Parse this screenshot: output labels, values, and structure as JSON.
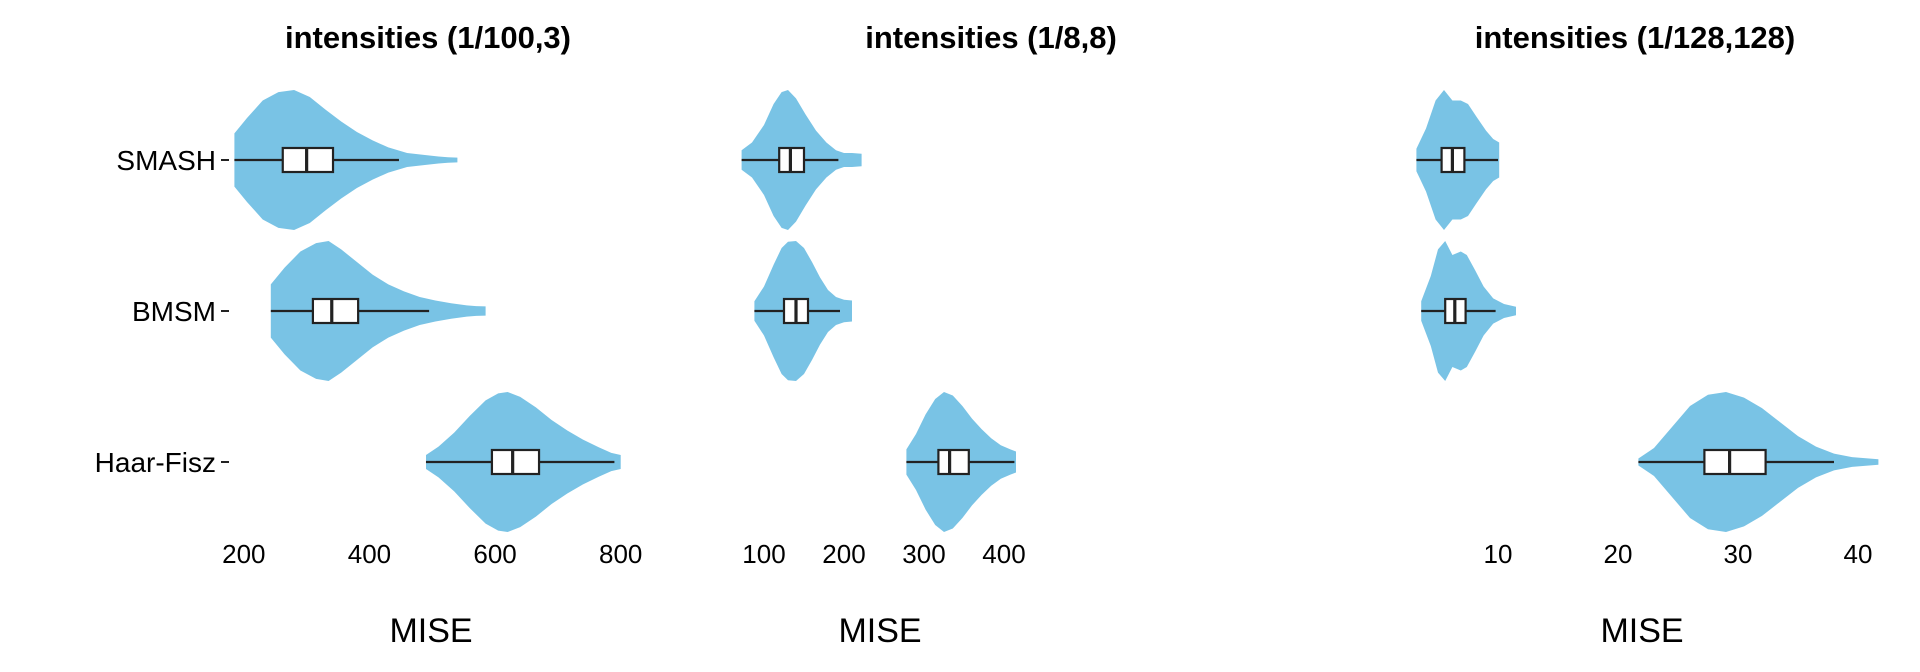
{
  "chart_data": [
    {
      "type": "violin",
      "title": "intensities (1/100,3)",
      "xlabel": "MISE",
      "ylabel": "",
      "xlim": [
        178,
        818
      ],
      "xticks": [
        200,
        400,
        600,
        800
      ],
      "categories": [
        "SMASH",
        "BMSM",
        "Haar-Fisz"
      ],
      "fill_color": "#79C3E5",
      "series": [
        {
          "category": "SMASH",
          "min": 185,
          "q1": 262,
          "median": 300,
          "q3": 342,
          "whisker_high": 447,
          "max": 540,
          "density": [
            [
              185,
              0.38
            ],
            [
              205,
              0.6
            ],
            [
              230,
              0.85
            ],
            [
              255,
              0.97
            ],
            [
              280,
              1.0
            ],
            [
              305,
              0.9
            ],
            [
              330,
              0.72
            ],
            [
              355,
              0.55
            ],
            [
              380,
              0.4
            ],
            [
              405,
              0.28
            ],
            [
              430,
              0.18
            ],
            [
              460,
              0.1
            ],
            [
              490,
              0.07
            ],
            [
              510,
              0.05
            ],
            [
              525,
              0.04
            ],
            [
              540,
              0.035
            ]
          ]
        },
        {
          "category": "BMSM",
          "min": 243,
          "q1": 310,
          "median": 340,
          "q3": 382,
          "whisker_high": 495,
          "max": 585,
          "density": [
            [
              243,
              0.38
            ],
            [
              265,
              0.62
            ],
            [
              290,
              0.85
            ],
            [
              315,
              0.97
            ],
            [
              335,
              1.0
            ],
            [
              355,
              0.88
            ],
            [
              380,
              0.7
            ],
            [
              405,
              0.52
            ],
            [
              430,
              0.38
            ],
            [
              455,
              0.28
            ],
            [
              480,
              0.2
            ],
            [
              505,
              0.15
            ],
            [
              530,
              0.11
            ],
            [
              555,
              0.08
            ],
            [
              570,
              0.07
            ],
            [
              585,
              0.065
            ]
          ]
        },
        {
          "category": "Haar-Fisz",
          "min": 490,
          "q1": 595,
          "median": 628,
          "q3": 670,
          "whisker_high": 790,
          "max": 800,
          "density": [
            [
              490,
              0.1
            ],
            [
              510,
              0.22
            ],
            [
              535,
              0.42
            ],
            [
              560,
              0.66
            ],
            [
              585,
              0.88
            ],
            [
              605,
              0.98
            ],
            [
              620,
              1.0
            ],
            [
              640,
              0.93
            ],
            [
              665,
              0.78
            ],
            [
              690,
              0.6
            ],
            [
              715,
              0.45
            ],
            [
              740,
              0.32
            ],
            [
              765,
              0.21
            ],
            [
              785,
              0.13
            ],
            [
              800,
              0.1
            ]
          ]
        }
      ]
    },
    {
      "type": "violin",
      "title": "intensities (1/8,8)",
      "xlabel": "MISE",
      "ylabel": "",
      "xlim": [
        70,
        420
      ],
      "xticks": [
        100,
        200,
        300,
        400
      ],
      "categories": [
        "SMASH",
        "BMSM",
        "Haar-Fisz"
      ],
      "fill_color": "#79C3E5",
      "series": [
        {
          "category": "SMASH",
          "min": 72,
          "q1": 119,
          "median": 133,
          "q3": 150,
          "whisker_high": 193,
          "max": 222,
          "density": [
            [
              72,
              0.14
            ],
            [
              85,
              0.25
            ],
            [
              100,
              0.5
            ],
            [
              112,
              0.8
            ],
            [
              122,
              0.97
            ],
            [
              130,
              1.0
            ],
            [
              140,
              0.88
            ],
            [
              152,
              0.65
            ],
            [
              165,
              0.42
            ],
            [
              178,
              0.25
            ],
            [
              190,
              0.14
            ],
            [
              200,
              0.1
            ],
            [
              210,
              0.1
            ],
            [
              222,
              0.09
            ]
          ]
        },
        {
          "category": "BMSM",
          "min": 88,
          "q1": 125,
          "median": 140,
          "q3": 155,
          "whisker_high": 195,
          "max": 210,
          "density": [
            [
              88,
              0.14
            ],
            [
              100,
              0.35
            ],
            [
              112,
              0.66
            ],
            [
              122,
              0.9
            ],
            [
              130,
              0.99
            ],
            [
              140,
              1.0
            ],
            [
              150,
              0.9
            ],
            [
              160,
              0.7
            ],
            [
              170,
              0.48
            ],
            [
              180,
              0.3
            ],
            [
              190,
              0.2
            ],
            [
              200,
              0.16
            ],
            [
              210,
              0.15
            ]
          ]
        },
        {
          "category": "Haar-Fisz",
          "min": 278,
          "q1": 318,
          "median": 332,
          "q3": 356,
          "whisker_high": 413,
          "max": 415,
          "density": [
            [
              278,
              0.18
            ],
            [
              290,
              0.4
            ],
            [
              302,
              0.68
            ],
            [
              314,
              0.9
            ],
            [
              325,
              1.0
            ],
            [
              336,
              0.95
            ],
            [
              348,
              0.8
            ],
            [
              360,
              0.62
            ],
            [
              372,
              0.47
            ],
            [
              384,
              0.34
            ],
            [
              396,
              0.24
            ],
            [
              408,
              0.18
            ],
            [
              415,
              0.15
            ]
          ]
        }
      ]
    },
    {
      "type": "violin",
      "title": "intensities (1/128,128)",
      "xlabel": "MISE",
      "ylabel": "",
      "xlim": [
        1.5,
        42.5
      ],
      "xticks": [
        10,
        20,
        30,
        40
      ],
      "categories": [
        "SMASH",
        "BMSM",
        "Haar-Fisz"
      ],
      "fill_color": "#79C3E5",
      "series": [
        {
          "category": "SMASH",
          "min": 3.2,
          "q1": 5.3,
          "median": 6.2,
          "q3": 7.2,
          "whisker_high": 10.0,
          "max": 10.1,
          "density": [
            [
              3.2,
              0.16
            ],
            [
              4.0,
              0.45
            ],
            [
              4.8,
              0.85
            ],
            [
              5.5,
              1.0
            ],
            [
              6.2,
              0.85
            ],
            [
              6.9,
              0.85
            ],
            [
              7.5,
              0.8
            ],
            [
              8.2,
              0.62
            ],
            [
              9.0,
              0.42
            ],
            [
              9.6,
              0.3
            ],
            [
              10.1,
              0.25
            ]
          ]
        },
        {
          "category": "BMSM",
          "min": 3.6,
          "q1": 5.6,
          "median": 6.4,
          "q3": 7.3,
          "whisker_high": 9.8,
          "max": 11.5,
          "density": [
            [
              3.6,
              0.14
            ],
            [
              4.4,
              0.5
            ],
            [
              5.0,
              0.88
            ],
            [
              5.6,
              1.0
            ],
            [
              6.2,
              0.8
            ],
            [
              6.9,
              0.85
            ],
            [
              7.4,
              0.8
            ],
            [
              8.1,
              0.58
            ],
            [
              8.8,
              0.35
            ],
            [
              9.6,
              0.18
            ],
            [
              10.5,
              0.1
            ],
            [
              11.5,
              0.06
            ]
          ]
        },
        {
          "category": "Haar-Fisz",
          "min": 21.7,
          "q1": 27.2,
          "median": 29.3,
          "q3": 32.3,
          "whisker_high": 38.0,
          "max": 41.7,
          "density": [
            [
              21.7,
              0.05
            ],
            [
              23.0,
              0.2
            ],
            [
              24.5,
              0.5
            ],
            [
              26.0,
              0.8
            ],
            [
              27.5,
              0.96
            ],
            [
              29.0,
              1.0
            ],
            [
              30.5,
              0.92
            ],
            [
              32.0,
              0.77
            ],
            [
              33.5,
              0.57
            ],
            [
              35.0,
              0.37
            ],
            [
              36.5,
              0.22
            ],
            [
              38.0,
              0.12
            ],
            [
              39.5,
              0.07
            ],
            [
              41.7,
              0.04
            ]
          ]
        }
      ]
    }
  ]
}
